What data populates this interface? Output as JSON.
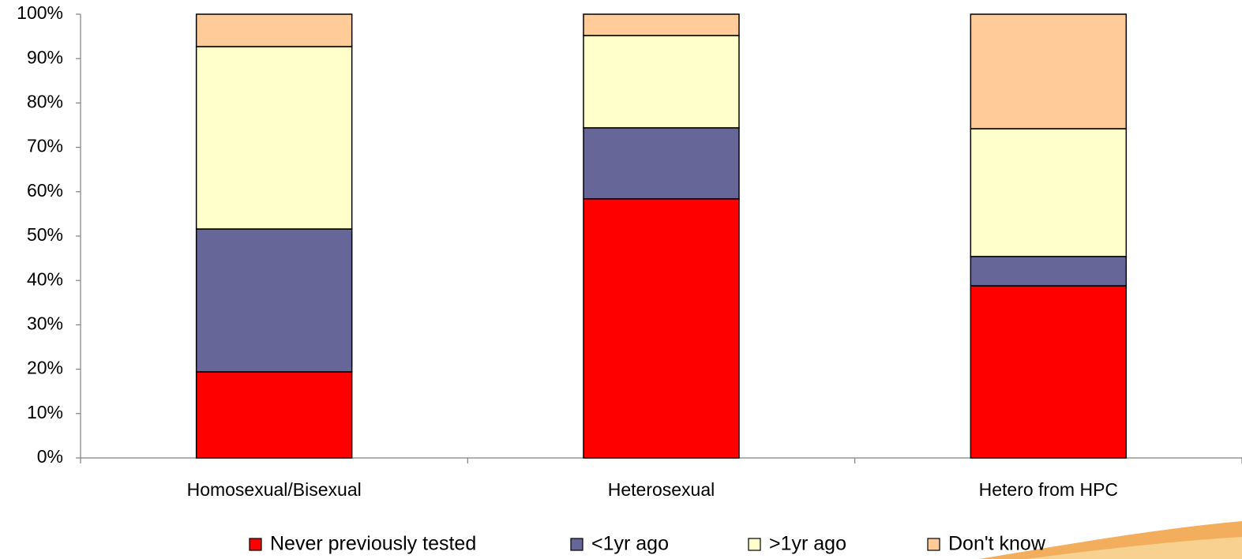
{
  "chart_data": {
    "type": "stacked_bar",
    "categories": [
      "Homosexual/Bisexual",
      "Heterosexual",
      "Hetero from HPC"
    ],
    "series": [
      {
        "name": "Never previously tested",
        "color": "#ff0000",
        "values": [
          19.4,
          58.4,
          38.8
        ]
      },
      {
        "name": "<1yr ago",
        "color": "#666699",
        "values": [
          32.2,
          16.0,
          6.6
        ]
      },
      {
        "name": ">1yr ago",
        "color": "#ffffcc",
        "values": [
          41.1,
          20.8,
          28.8
        ]
      },
      {
        "name": "Don't know",
        "color": "#ffcc99",
        "values": [
          7.3,
          4.8,
          25.8
        ]
      }
    ],
    "ylim": [
      0,
      100
    ],
    "yticks": [
      {
        "value": 0,
        "label": "0%"
      },
      {
        "value": 10,
        "label": "10%"
      },
      {
        "value": 20,
        "label": "20%"
      },
      {
        "value": 30,
        "label": "30%"
      },
      {
        "value": 40,
        "label": "40%"
      },
      {
        "value": 50,
        "label": "50%"
      },
      {
        "value": 60,
        "label": "60%"
      },
      {
        "value": 70,
        "label": "70%"
      },
      {
        "value": 80,
        "label": "80%"
      },
      {
        "value": 90,
        "label": "90%"
      },
      {
        "value": 100,
        "label": "100%"
      }
    ],
    "grid": false,
    "legend": "bottom"
  }
}
